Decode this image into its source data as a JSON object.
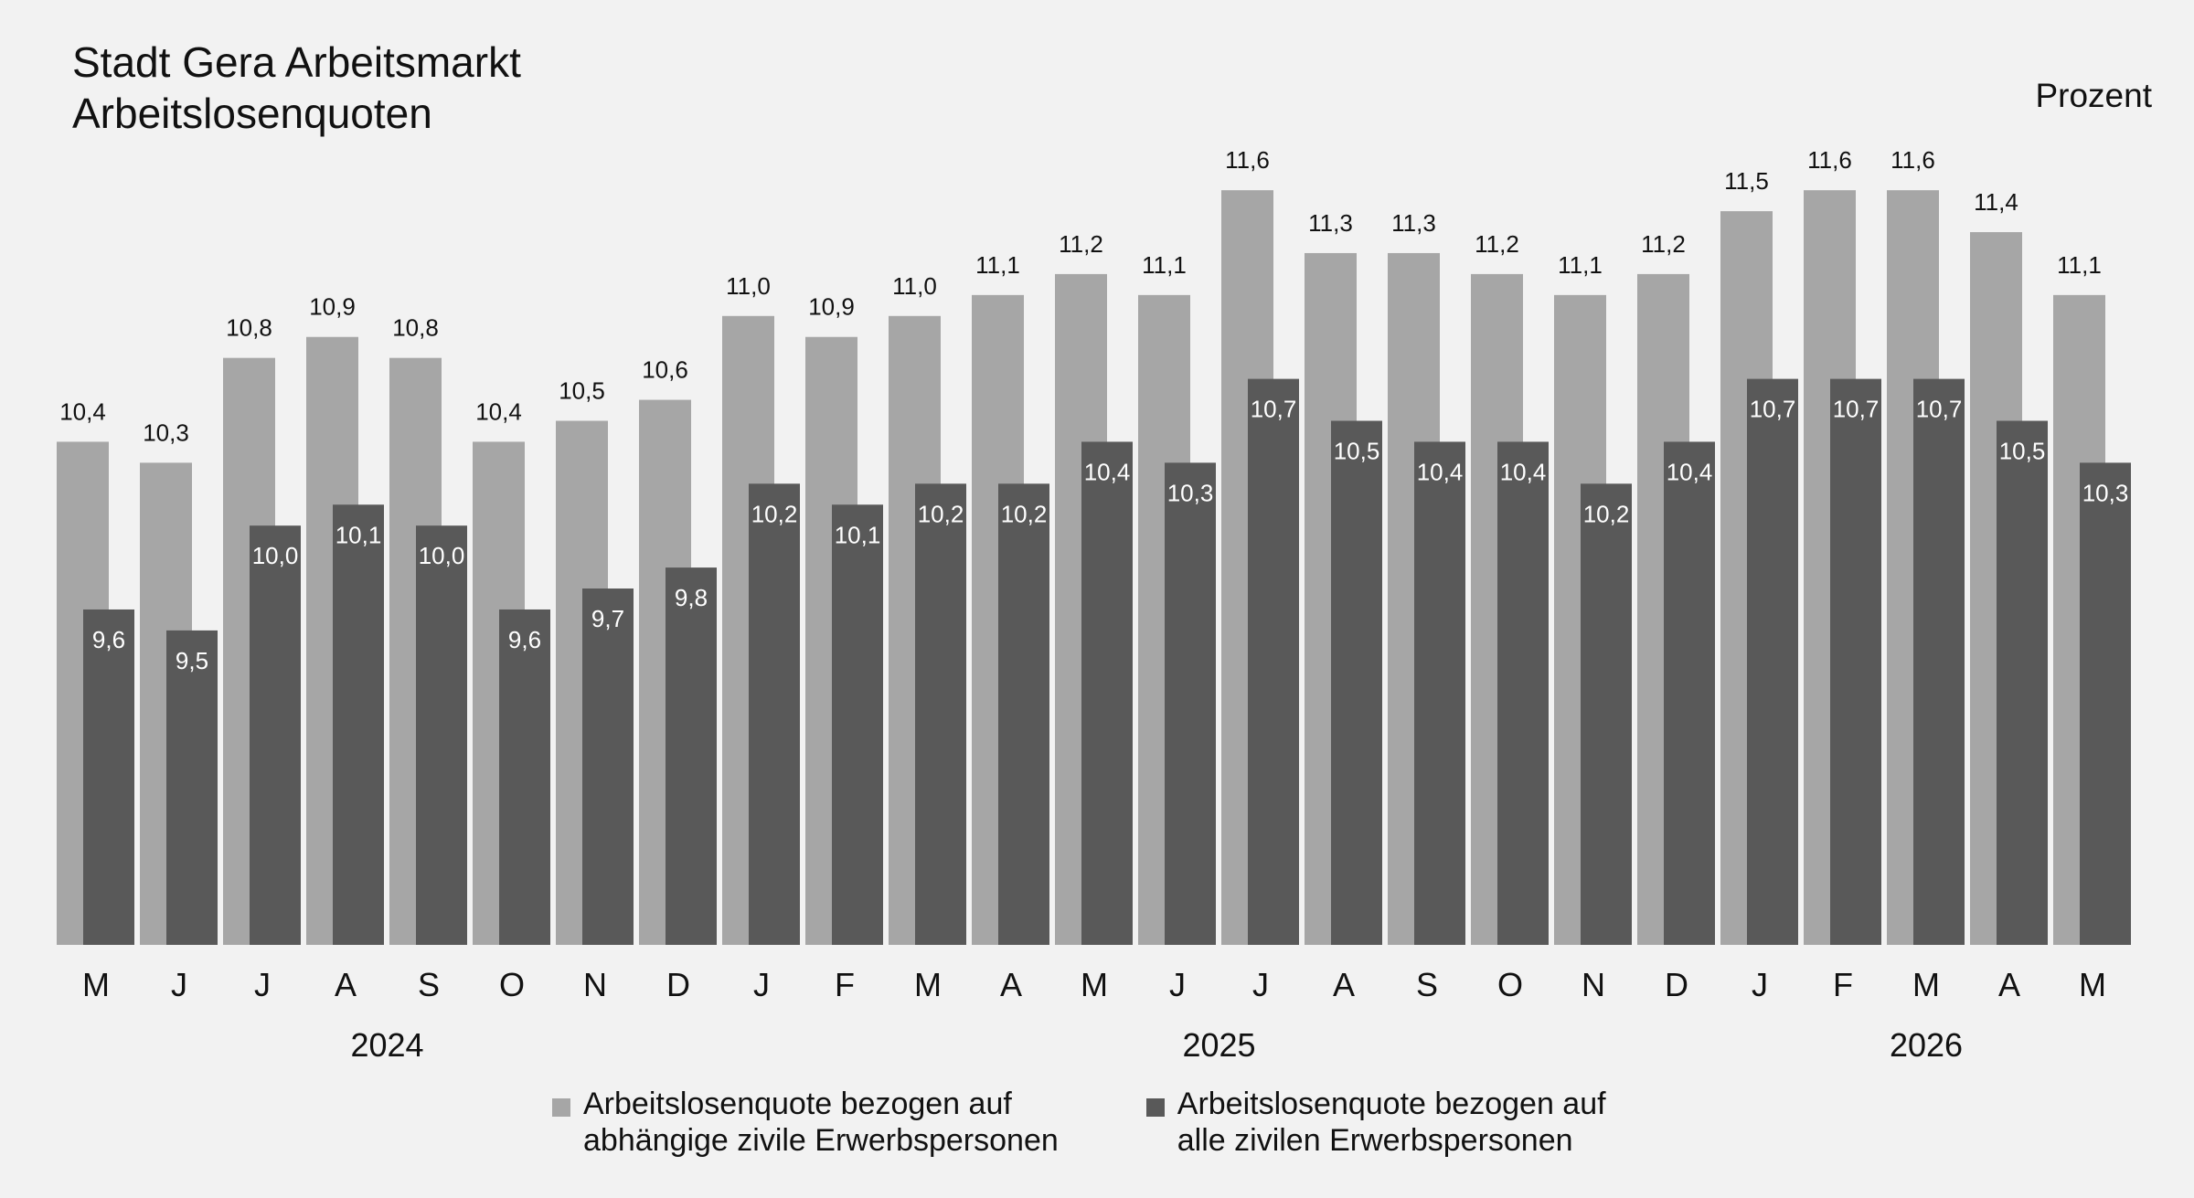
{
  "chart_data": {
    "type": "bar",
    "title": "Stadt Gera Arbeitsmarkt",
    "subtitle": "Arbeitslosenquoten",
    "unit": "Prozent",
    "categories": [
      "M",
      "J",
      "J",
      "A",
      "S",
      "O",
      "N",
      "D",
      "J",
      "F",
      "M",
      "A",
      "M",
      "J",
      "J",
      "A",
      "S",
      "O",
      "N",
      "D",
      "J",
      "F",
      "M",
      "A",
      "M"
    ],
    "year_labels": [
      {
        "label": "2024",
        "start_index": 0,
        "end_index": 7
      },
      {
        "label": "2025",
        "start_index": 8,
        "end_index": 19
      },
      {
        "label": "2026",
        "start_index": 20,
        "end_index": 24
      }
    ],
    "series": [
      {
        "name_lines": [
          "Arbeitslosenquote bezogen auf",
          "abhängige zivile Erwerbspersonen"
        ],
        "color": "#a6a6a6",
        "values": [
          10.4,
          10.3,
          10.8,
          10.9,
          10.8,
          10.4,
          10.5,
          10.6,
          11.0,
          10.9,
          11.0,
          11.1,
          11.2,
          11.1,
          11.6,
          11.3,
          11.3,
          11.2,
          11.1,
          11.2,
          11.5,
          11.6,
          11.6,
          11.4,
          11.1
        ],
        "labels": [
          "10,4",
          "10,3",
          "10,8",
          "10,9",
          "10,8",
          "10,4",
          "10,5",
          "10,6",
          "11,0",
          "10,9",
          "11,0",
          "11,1",
          "11,2",
          "11,1",
          "11,6",
          "11,3",
          "11,3",
          "11,2",
          "11,1",
          "11,2",
          "11,5",
          "11,6",
          "11,6",
          "11,4",
          "11,1"
        ]
      },
      {
        "name_lines": [
          "Arbeitslosenquote bezogen auf",
          "alle zivilen Erwerbspersonen"
        ],
        "color": "#595959",
        "values": [
          9.6,
          9.5,
          10.0,
          10.1,
          10.0,
          9.6,
          9.7,
          9.8,
          10.2,
          10.1,
          10.2,
          10.2,
          10.4,
          10.3,
          10.7,
          10.5,
          10.4,
          10.4,
          10.2,
          10.4,
          10.7,
          10.7,
          10.7,
          10.5,
          10.3
        ],
        "labels": [
          "9,6",
          "9,5",
          "10,0",
          "10,1",
          "10,0",
          "9,6",
          "9,7",
          "9,8",
          "10,2",
          "10,1",
          "10,2",
          "10,2",
          "10,4",
          "10,3",
          "10,7",
          "10,5",
          "10,4",
          "10,4",
          "10,2",
          "10,4",
          "10,7",
          "10,7",
          "10,7",
          "10,5",
          "10,3"
        ]
      }
    ],
    "ylim": [
      8.0,
      12.0
    ],
    "grid": false,
    "legend": "bottom"
  }
}
